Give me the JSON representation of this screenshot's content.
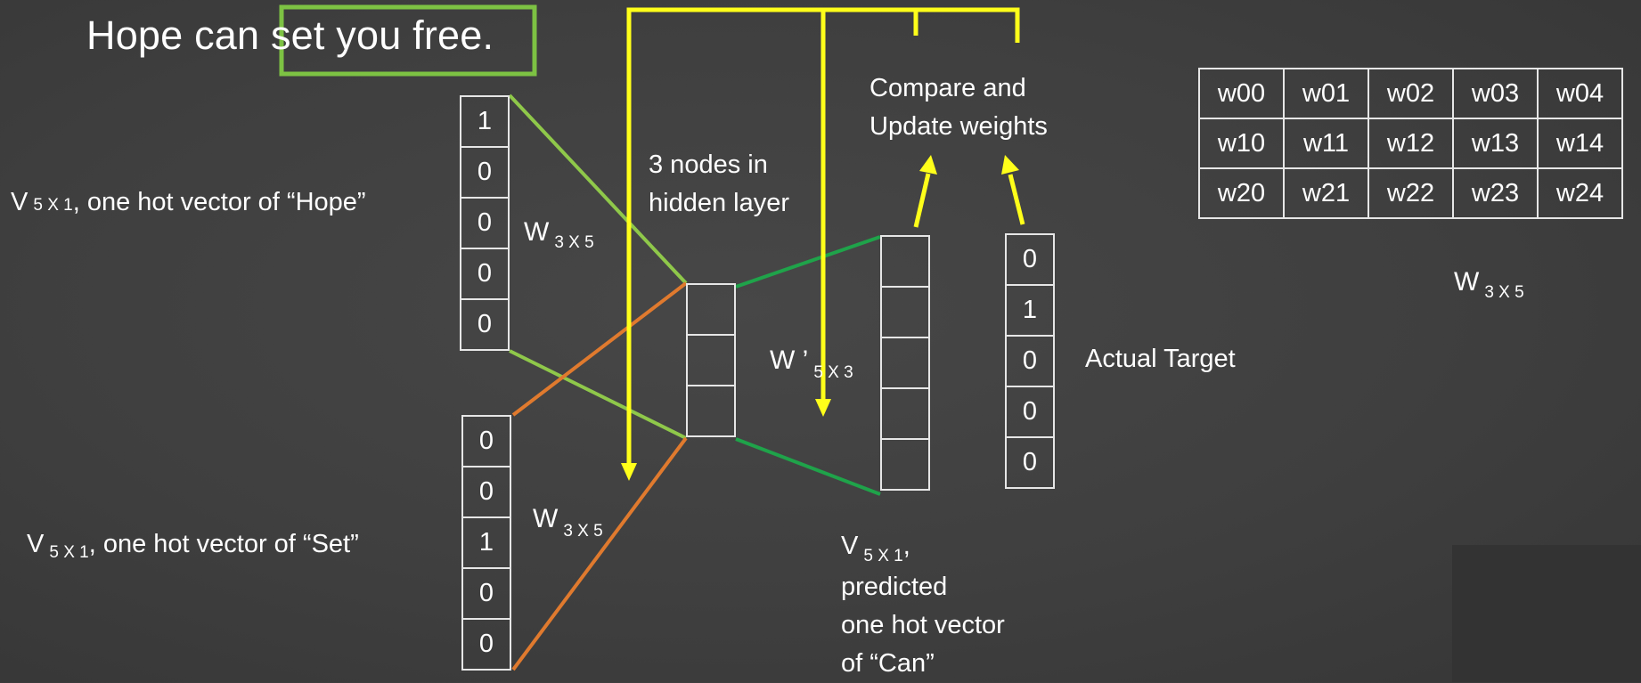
{
  "title": {
    "before": "Hope can ",
    "highlight": "set you free",
    "after": "."
  },
  "input_hope": {
    "prefix": "V",
    "subscript": "5 X 1",
    "text": ", one hot vector of “Hope”",
    "values": [
      "1",
      "0",
      "0",
      "0",
      "0"
    ]
  },
  "input_set": {
    "prefix": "V",
    "subscript": "5 X 1",
    "text": ", one hot vector of “Set”",
    "values": [
      "0",
      "0",
      "1",
      "0",
      "0"
    ]
  },
  "w_hope": {
    "prefix": "W",
    "subscript": "3 X 5"
  },
  "w_set": {
    "prefix": "W",
    "subscript": "3 X 5"
  },
  "hidden_label": {
    "line1": "3 nodes in",
    "line2": "hidden layer"
  },
  "w_prime": {
    "prefix": "W ’",
    "subscript": "5 X 3"
  },
  "compare_label": {
    "line1": "Compare and",
    "line2": "Update weights"
  },
  "output": {
    "prefix": "V",
    "subscript": "5 X 1",
    "suffix": ",",
    "line2": "predicted",
    "line3": "one hot vector",
    "line4": "of “Can”"
  },
  "target": {
    "label": "Actual Target",
    "values": [
      "0",
      "1",
      "0",
      "0",
      "0"
    ]
  },
  "matrix": {
    "rows": [
      [
        "w00",
        "w01",
        "w02",
        "w03",
        "w04"
      ],
      [
        "w10",
        "w11",
        "w12",
        "w13",
        "w14"
      ],
      [
        "w20",
        "w21",
        "w22",
        "w23",
        "w24"
      ]
    ],
    "caption_prefix": "W",
    "caption_subscript": "3 X 5"
  },
  "colors": {
    "background": "#404040",
    "highlight_box": "#7dc243",
    "input_hope_edges": "#8fc84a",
    "input_set_edges": "#e07a2e",
    "output_edges": "#1fa34a",
    "feedback_arrows": "#ffff1a"
  }
}
